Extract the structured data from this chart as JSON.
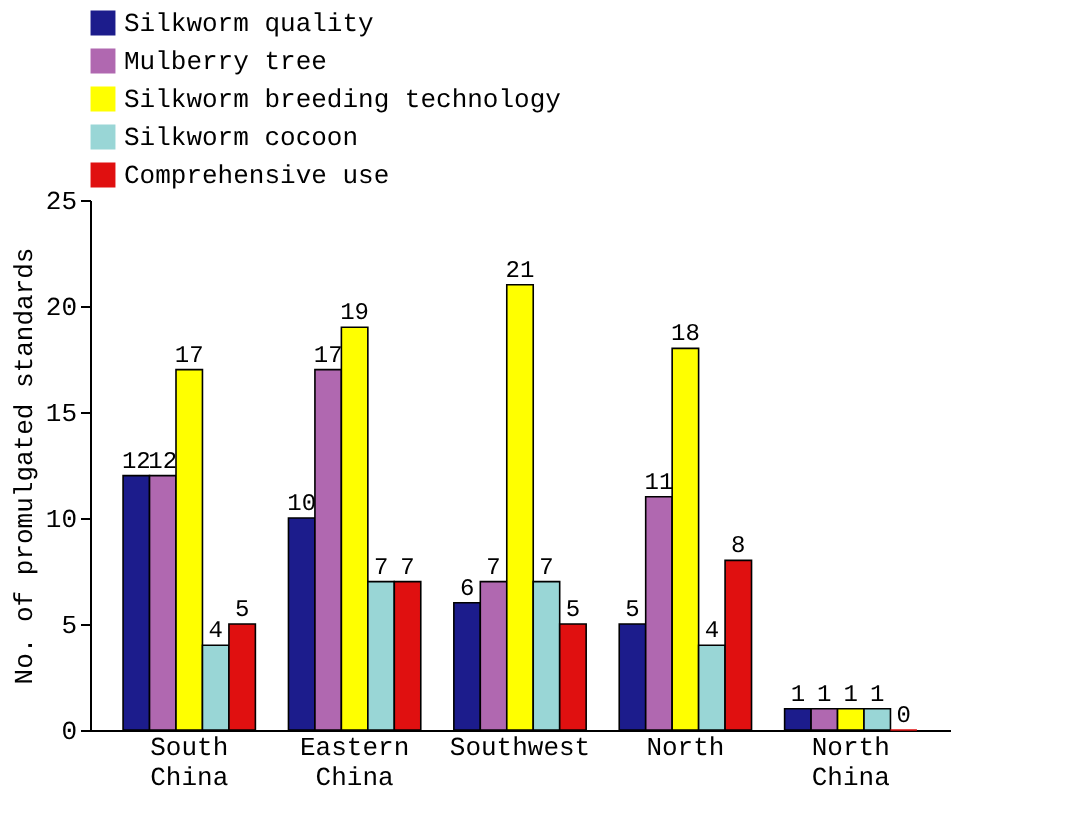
{
  "chart_data": {
    "type": "bar",
    "ylabel": "No. of promulgated standards",
    "categories": [
      "South China",
      "Eastern China",
      "Southwest",
      "North",
      "North China"
    ],
    "series": [
      {
        "name": "Silkworm quality",
        "color": "#1c1c8c",
        "values": [
          12,
          10,
          6,
          5,
          1
        ]
      },
      {
        "name": "Mulberry tree",
        "color": "#b068b0",
        "values": [
          12,
          17,
          7,
          11,
          1
        ]
      },
      {
        "name": "Silkworm breeding technology",
        "color": "#ffff00",
        "values": [
          17,
          19,
          21,
          18,
          1
        ]
      },
      {
        "name": "Silkworm cocoon",
        "color": "#99d6d6",
        "values": [
          4,
          7,
          7,
          4,
          1
        ]
      },
      {
        "name": "Comprehensive use",
        "color": "#e01010",
        "values": [
          5,
          7,
          5,
          8,
          0
        ]
      }
    ],
    "ylim": [
      0,
      25
    ],
    "yticks": [
      0,
      5,
      10,
      15,
      20,
      25
    ],
    "grid": false,
    "legend": "top",
    "data_labels": true
  }
}
